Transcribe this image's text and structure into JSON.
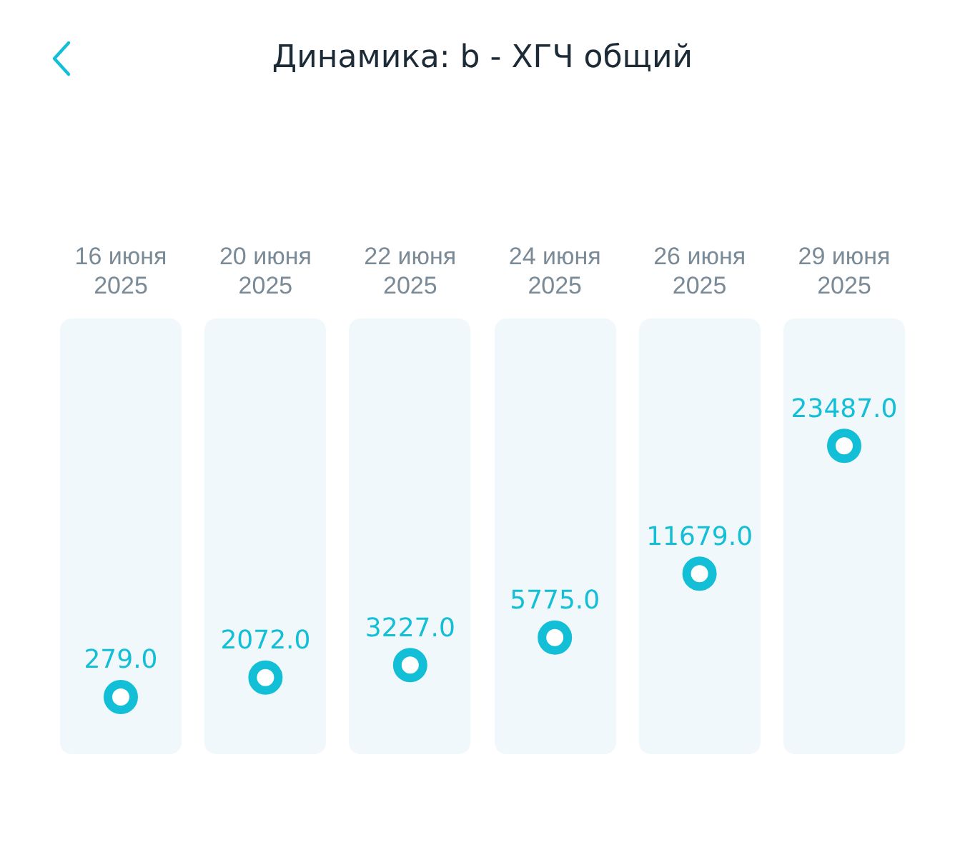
{
  "chart_data": {
    "type": "scatter",
    "title": "Динамика: b - ХГЧ общий",
    "categories": [
      "16 июня 2025",
      "20 июня 2025",
      "22 июня 2025",
      "24 июня 2025",
      "26 июня 2025",
      "29 июня 2025"
    ],
    "values": [
      279.0,
      2072.0,
      3227.0,
      5775.0,
      11679.0,
      23487.0
    ],
    "value_labels": [
      "279.0",
      "2072.0",
      "3227.0",
      "5775.0",
      "11679.0",
      "23487.0"
    ],
    "color": "#12bfd6",
    "marker": "circle",
    "grid": false,
    "legend": false,
    "tick_labels": "x"
  }
}
